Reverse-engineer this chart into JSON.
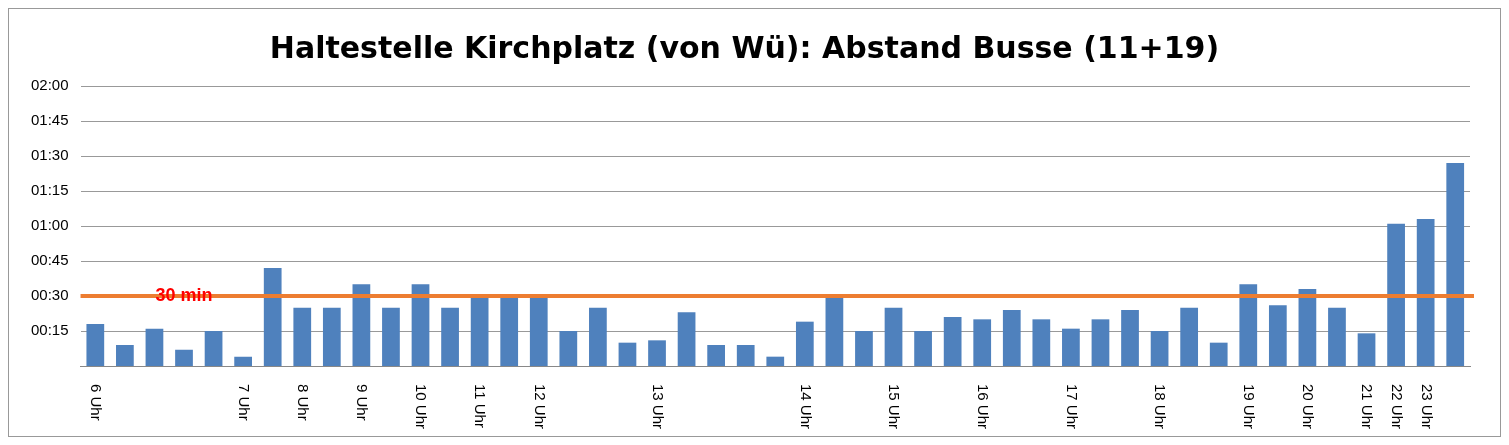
{
  "chart_data": {
    "type": "bar",
    "title": "Haltestelle Kirchplatz (von Wü): Abstand Busse (11+19)",
    "categories": [
      "6 Uhr",
      null,
      null,
      null,
      null,
      "7 Uhr",
      null,
      "8 Uhr",
      null,
      "9 Uhr",
      null,
      "10 Uhr",
      null,
      "11 Uhr",
      null,
      "12 Uhr",
      null,
      null,
      null,
      "13 Uhr",
      null,
      null,
      null,
      null,
      "14 Uhr",
      null,
      null,
      "15 Uhr",
      null,
      null,
      "16 Uhr",
      null,
      null,
      "17 Uhr",
      null,
      null,
      "18 Uhr",
      null,
      null,
      "19 Uhr",
      null,
      "20 Uhr",
      null,
      "21 Uhr",
      "22 Uhr",
      "23 Uhr",
      null
    ],
    "values": [
      18,
      9,
      16,
      7,
      15,
      4,
      42,
      25,
      25,
      35,
      25,
      35,
      25,
      30,
      30,
      30,
      15,
      25,
      10,
      11,
      23,
      9,
      9,
      4,
      19,
      30,
      15,
      25,
      15,
      21,
      20,
      24,
      20,
      16,
      20,
      24,
      15,
      25,
      10,
      35,
      26,
      33,
      25,
      14,
      61,
      63,
      87
    ],
    "color": "#4f81bd",
    "ylim": [
      0,
      120
    ],
    "yticks": [
      {
        "value": 15,
        "label": "00:15"
      },
      {
        "value": 30,
        "label": "00:30"
      },
      {
        "value": 45,
        "label": "00:45"
      },
      {
        "value": 60,
        "label": "01:00"
      },
      {
        "value": 75,
        "label": "01:15"
      },
      {
        "value": 90,
        "label": "01:30"
      },
      {
        "value": 105,
        "label": "01:45"
      },
      {
        "value": 120,
        "label": "02:00"
      }
    ],
    "grid": "y",
    "legend": false,
    "ref_lines": [
      {
        "axis": "y",
        "value": 30,
        "label": "30 min",
        "color": "#ed7d31"
      }
    ]
  }
}
